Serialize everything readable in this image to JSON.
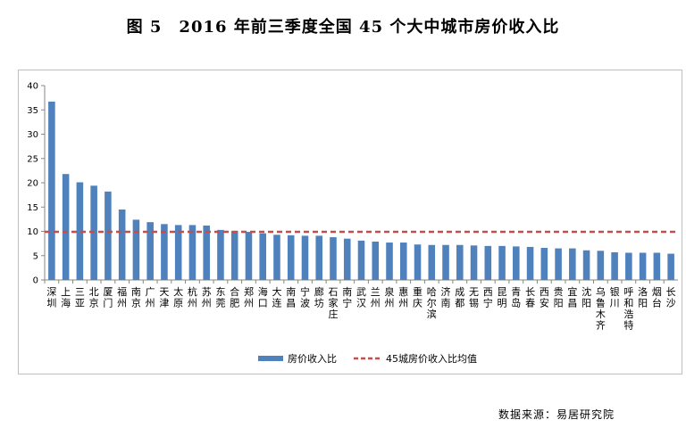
{
  "title": "图 5　2016 年前三季度全国 45 个大中城市房价收入比",
  "source": "数据来源：易居研究院",
  "colors": {
    "bar": "#4f81bd",
    "avg_line": "#c0504d",
    "axis": "#868686"
  },
  "chart_data": {
    "type": "bar",
    "title": "图 5　2016 年前三季度全国 45 个大中城市房价收入比",
    "xlabel": "",
    "ylabel": "",
    "ylim": [
      0,
      40
    ],
    "yticks": [
      0,
      5,
      10,
      15,
      20,
      25,
      30,
      35,
      40
    ],
    "grid": false,
    "legend_position": "bottom",
    "categories": [
      "深圳",
      "上海",
      "三亚",
      "北京",
      "厦门",
      "福州",
      "南京",
      "广州",
      "天津",
      "太原",
      "杭州",
      "苏州",
      "东莞",
      "合肥",
      "郑州",
      "海口",
      "大连",
      "南昌",
      "宁波",
      "廊坊",
      "石家庄",
      "南宁",
      "武汉",
      "兰州",
      "泉州",
      "惠州",
      "重庆",
      "哈尔滨",
      "济南",
      "成都",
      "无锡",
      "西宁",
      "昆明",
      "青岛",
      "长春",
      "西安",
      "贵阳",
      "宜昌",
      "沈阳",
      "乌鲁木齐",
      "银川",
      "呼和浩特",
      "洛阳",
      "烟台",
      "长沙"
    ],
    "series": [
      {
        "name": "房价收入比",
        "type": "bar",
        "values": [
          36.7,
          21.8,
          20.1,
          19.4,
          18.2,
          14.5,
          12.4,
          11.9,
          11.5,
          11.3,
          11.3,
          11.2,
          10.3,
          10.1,
          9.9,
          9.6,
          9.3,
          9.2,
          9.1,
          9.1,
          8.8,
          8.5,
          8.1,
          7.9,
          7.7,
          7.7,
          7.3,
          7.2,
          7.2,
          7.2,
          7.1,
          7.0,
          7.0,
          6.9,
          6.8,
          6.6,
          6.5,
          6.5,
          6.1,
          6.0,
          5.7,
          5.6,
          5.6,
          5.6,
          5.4
        ]
      },
      {
        "name": "45城房价收入比均值",
        "type": "line",
        "style": "dashed",
        "value": 9.9
      }
    ]
  }
}
